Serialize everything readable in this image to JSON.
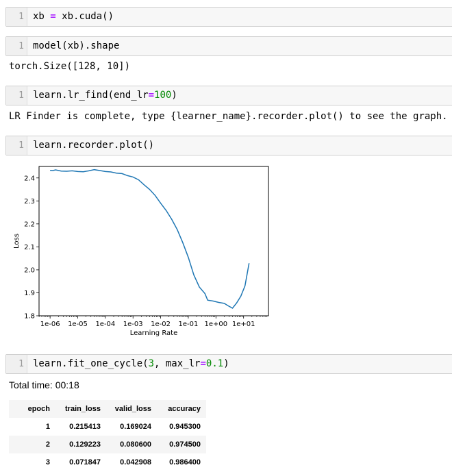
{
  "cells": [
    {
      "line": "1",
      "tokens": [
        {
          "t": "xb "
        },
        {
          "t": "=",
          "c": "op"
        },
        {
          "t": " xb.cuda()"
        }
      ]
    },
    {
      "line": "1",
      "tokens": [
        {
          "t": "model(xb).shape"
        }
      ]
    },
    {
      "line": "1",
      "tokens": [
        {
          "t": "learn.lr_find(end_lr"
        },
        {
          "t": "=",
          "c": "op"
        },
        {
          "t": "100",
          "c": "num"
        },
        {
          "t": ")"
        }
      ]
    },
    {
      "line": "1",
      "tokens": [
        {
          "t": "learn.recorder.plot()"
        }
      ]
    },
    {
      "line": "1",
      "tokens": [
        {
          "t": "learn.fit_one_cycle("
        },
        {
          "t": "3",
          "c": "num"
        },
        {
          "t": ", max_lr"
        },
        {
          "t": "=",
          "c": "op"
        },
        {
          "t": "0.1",
          "c": "num"
        },
        {
          "t": ")"
        }
      ]
    }
  ],
  "outputs": {
    "shape": "torch.Size([128, 10])",
    "lr_find": "LR Finder is complete, type {learner_name}.recorder.plot() to see the graph.",
    "total_time": "Total time: 00:18"
  },
  "chart_data": {
    "type": "line",
    "xlabel": "Learning Rate",
    "ylabel": "Loss",
    "xscale": "log",
    "xlim_log10": [
      -6.4,
      1.9
    ],
    "ylim": [
      1.8,
      2.45
    ],
    "xticks": [
      {
        "v": -6,
        "label": "1e-06"
      },
      {
        "v": -5,
        "label": "1e-05"
      },
      {
        "v": -4,
        "label": "1e-04"
      },
      {
        "v": -3,
        "label": "1e-03"
      },
      {
        "v": -2,
        "label": "1e-02"
      },
      {
        "v": -1,
        "label": "1e-01"
      },
      {
        "v": 0,
        "label": "1e+00"
      },
      {
        "v": 1,
        "label": "1e+01"
      }
    ],
    "yticks": [
      {
        "v": 1.8,
        "label": "1.8"
      },
      {
        "v": 1.9,
        "label": "1.9"
      },
      {
        "v": 2.0,
        "label": "2.0"
      },
      {
        "v": 2.1,
        "label": "2.1"
      },
      {
        "v": 2.2,
        "label": "2.2"
      },
      {
        "v": 2.3,
        "label": "2.3"
      },
      {
        "v": 2.4,
        "label": "2.4"
      }
    ],
    "series": [
      {
        "color": "#1f77b4",
        "points_log10_x_y": [
          [
            -6.0,
            2.433
          ],
          [
            -5.9,
            2.432
          ],
          [
            -5.8,
            2.435
          ],
          [
            -5.6,
            2.43
          ],
          [
            -5.4,
            2.429
          ],
          [
            -5.2,
            2.431
          ],
          [
            -5.0,
            2.428
          ],
          [
            -4.8,
            2.427
          ],
          [
            -4.6,
            2.431
          ],
          [
            -4.4,
            2.436
          ],
          [
            -4.2,
            2.432
          ],
          [
            -4.0,
            2.428
          ],
          [
            -3.8,
            2.426
          ],
          [
            -3.6,
            2.421
          ],
          [
            -3.4,
            2.419
          ],
          [
            -3.2,
            2.41
          ],
          [
            -3.0,
            2.404
          ],
          [
            -2.8,
            2.392
          ],
          [
            -2.6,
            2.37
          ],
          [
            -2.4,
            2.35
          ],
          [
            -2.2,
            2.324
          ],
          [
            -2.0,
            2.29
          ],
          [
            -1.8,
            2.258
          ],
          [
            -1.6,
            2.22
          ],
          [
            -1.4,
            2.175
          ],
          [
            -1.2,
            2.118
          ],
          [
            -1.0,
            2.054
          ],
          [
            -0.8,
            1.978
          ],
          [
            -0.6,
            1.925
          ],
          [
            -0.4,
            1.897
          ],
          [
            -0.3,
            1.868
          ],
          [
            -0.1,
            1.864
          ],
          [
            0.1,
            1.858
          ],
          [
            0.3,
            1.854
          ],
          [
            0.45,
            1.843
          ],
          [
            0.6,
            1.833
          ],
          [
            0.75,
            1.856
          ],
          [
            0.9,
            1.885
          ],
          [
            1.05,
            1.93
          ],
          [
            1.2,
            2.029
          ]
        ]
      }
    ]
  },
  "table": {
    "headers": [
      "epoch",
      "train_loss",
      "valid_loss",
      "accuracy"
    ],
    "rows": [
      [
        "1",
        "0.215413",
        "0.169024",
        "0.945300"
      ],
      [
        "2",
        "0.129223",
        "0.080600",
        "0.974500"
      ],
      [
        "3",
        "0.071847",
        "0.042908",
        "0.986400"
      ]
    ]
  }
}
